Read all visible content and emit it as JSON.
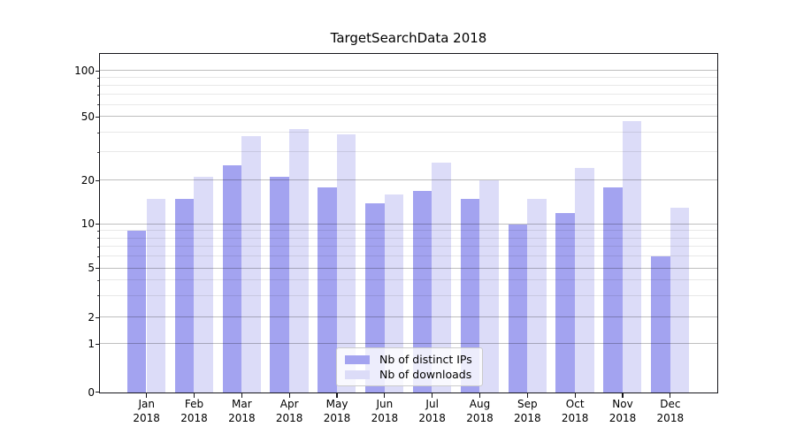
{
  "chart_data": {
    "type": "bar",
    "title": "TargetSearchData 2018",
    "categories": [
      "Jan",
      "Feb",
      "Mar",
      "Apr",
      "May",
      "Jun",
      "Jul",
      "Aug",
      "Sep",
      "Oct",
      "Nov",
      "Dec"
    ],
    "x_tick_year": "2018",
    "series": [
      {
        "name": "Nb of distinct IPs",
        "color": "#a3a3f0",
        "values": [
          9,
          15,
          25,
          21,
          18,
          14,
          17,
          15,
          10,
          12,
          18,
          6
        ]
      },
      {
        "name": "Nb of downloads",
        "color": "#dcdcf8",
        "values": [
          15,
          21,
          38,
          42,
          39,
          16,
          26,
          20,
          15,
          24,
          47,
          13
        ]
      }
    ],
    "y_axis": {
      "scale": "symlog (log above 1, linear below 1)",
      "ticks": [
        0,
        1,
        2,
        5,
        10,
        20,
        50,
        100
      ],
      "minor_gridlines": [
        3,
        4,
        6,
        7,
        8,
        9,
        30,
        40,
        60,
        70,
        80,
        90
      ],
      "ylim": [
        0,
        129
      ]
    },
    "grid": true,
    "legend_position": "lower center"
  }
}
